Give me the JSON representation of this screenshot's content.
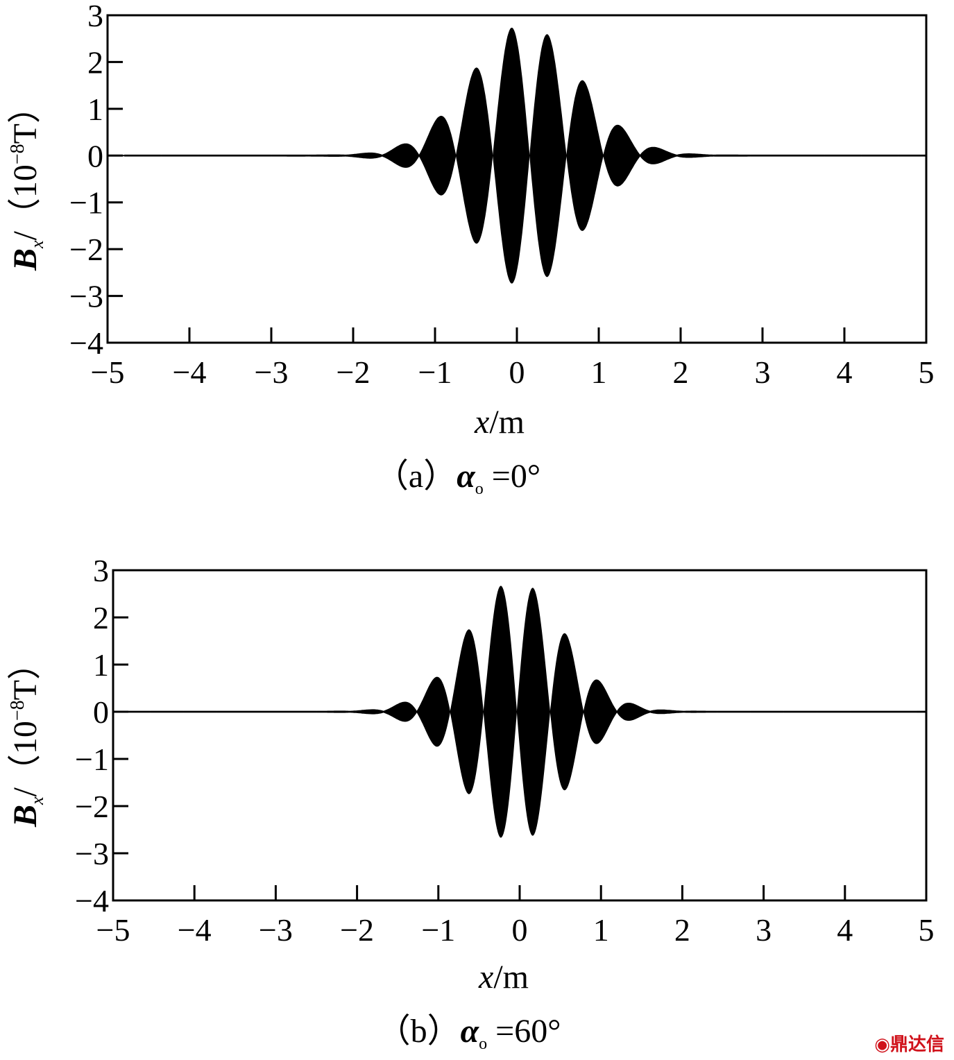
{
  "chart_data": [
    {
      "type": "line",
      "panel": "a",
      "xlabel_main": "x",
      "xlabel_unit": "/m",
      "ylabel_main": "B",
      "ylabel_sub": "x",
      "ylabel_unit_pre": "/（10",
      "ylabel_unit_exp": "−8",
      "ylabel_unit_post": "T）",
      "caption_prefix": "（a）",
      "caption_alpha": "α",
      "caption_sub": "o",
      "caption_value": " =0°",
      "xlim": [
        -5,
        5
      ],
      "ylim": [
        -4,
        3
      ],
      "xticks": [
        -5,
        -4,
        -3,
        -2,
        -1,
        0,
        1,
        2,
        3,
        4,
        5
      ],
      "yticks": [
        3,
        2,
        1,
        0,
        -1,
        -2,
        -3,
        -4
      ],
      "xtick_labels": [
        "−5",
        "−4",
        "−3",
        "−2",
        "−1",
        "0",
        "1",
        "2",
        "3",
        "4",
        "5"
      ],
      "ytick_labels": [
        "3",
        "2",
        "1",
        "0",
        "−1",
        "−2",
        "−3",
        "−4"
      ],
      "envelope_center": 0.1,
      "envelope_width": 0.95,
      "envelope_peak": 2.8,
      "lobe_spacing": 0.45,
      "lobe_phase": -0.07
    },
    {
      "type": "line",
      "panel": "b",
      "xlabel_main": "x",
      "xlabel_unit": "/m",
      "ylabel_main": "B",
      "ylabel_sub": "x",
      "ylabel_unit_pre": "/（10",
      "ylabel_unit_exp": "−8",
      "ylabel_unit_post": "T）",
      "caption_prefix": "（b）",
      "caption_alpha": "α",
      "caption_sub": "o",
      "caption_value": " =60°",
      "xlim": [
        -5,
        5
      ],
      "ylim": [
        -4,
        3
      ],
      "xticks": [
        -5,
        -4,
        -3,
        -2,
        -1,
        0,
        1,
        2,
        3,
        4,
        5
      ],
      "yticks": [
        3,
        2,
        1,
        0,
        -1,
        -2,
        -3,
        -4
      ],
      "xtick_labels": [
        "−5",
        "−4",
        "−3",
        "−2",
        "−1",
        "0",
        "1",
        "2",
        "3",
        "4",
        "5"
      ],
      "ytick_labels": [
        "3",
        "2",
        "1",
        "0",
        "−1",
        "−2",
        "−3",
        "−4"
      ],
      "envelope_center": -0.05,
      "envelope_width": 0.85,
      "envelope_peak": 2.78,
      "lobe_spacing": 0.41,
      "lobe_phase": -0.24
    }
  ],
  "watermark": "鼎达信"
}
